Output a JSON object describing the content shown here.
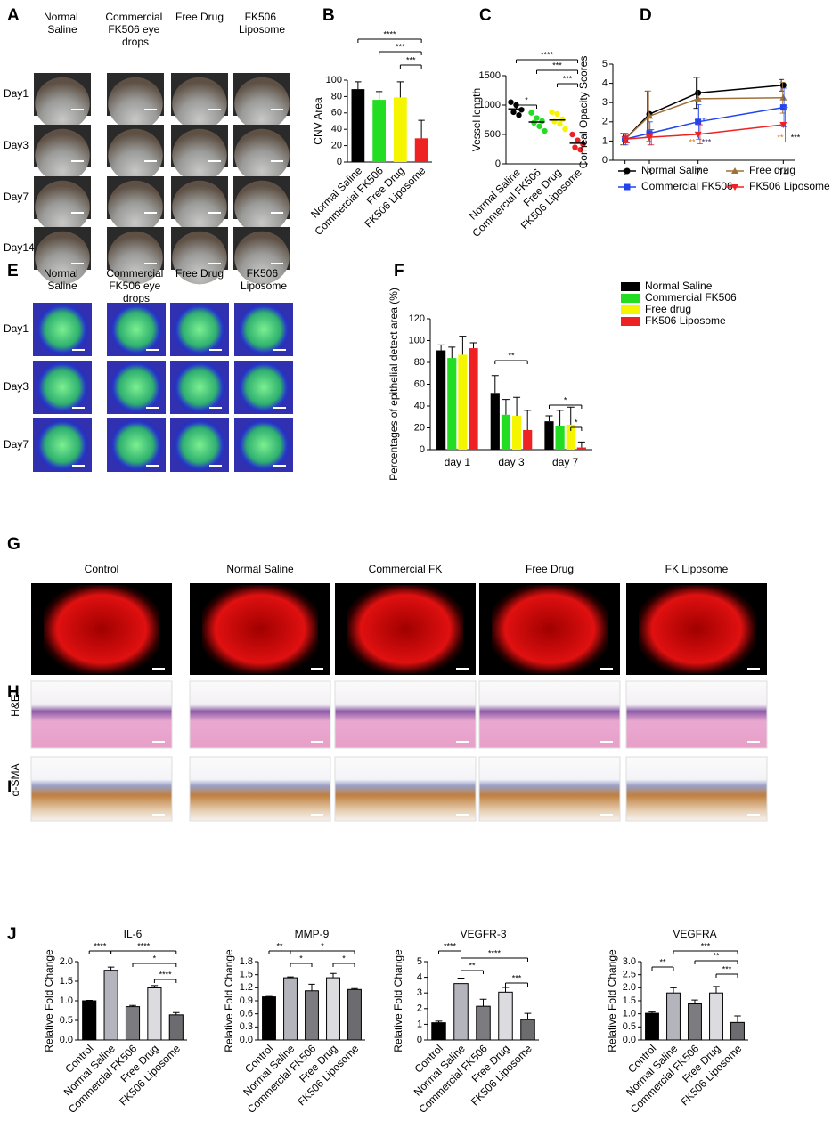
{
  "photo_panels": [
    {
      "label": "A",
      "columns": [
        "Normal Saline",
        "Commercial FK506 eye drops",
        "Free Drug",
        "FK506 Liposome"
      ],
      "rows": [
        "Day1",
        "Day3",
        "Day7",
        "Day14"
      ]
    },
    {
      "label": "E",
      "columns": [
        "Normal Saline",
        "Commercial FK506 eye drops",
        "Free Drug",
        "FK506 Liposome"
      ],
      "rows": [
        "Day1",
        "Day3",
        "Day7"
      ]
    },
    {
      "label": "G",
      "columns": [
        "Control",
        "Normal Saline",
        "Commercial FK",
        "Free Drug",
        "FK Liposome"
      ]
    },
    {
      "label": "H",
      "rows": [
        "H&E"
      ]
    },
    {
      "label": "I",
      "rows": [
        "α-SMA"
      ]
    }
  ],
  "chart_data": [
    {
      "type": "bar",
      "panel": "B",
      "ylabel": "CNV Area",
      "categories": [
        "Normal Saline",
        "Commercial FK506",
        "Free Drug",
        "FK506 Liposome"
      ],
      "values": [
        89,
        76,
        79,
        29
      ],
      "errors": [
        9,
        10,
        19,
        22
      ],
      "colors": [
        "#000000",
        "#22dd22",
        "#f5f500",
        "#ee2222"
      ],
      "ylim": [
        0,
        100
      ],
      "yticks": [
        0,
        20,
        40,
        60,
        80,
        100
      ],
      "annotations": [
        "****",
        "***",
        "***"
      ]
    },
    {
      "type": "dot",
      "panel": "C",
      "ylabel": "Vessel length",
      "categories": [
        "Normal Saline",
        "Commercial FK506",
        "Free Drug",
        "FK506 Liposome"
      ],
      "points": [
        [
          1050,
          1000,
          920,
          880,
          830
        ],
        [
          870,
          780,
          730,
          700,
          640,
          560
        ],
        [
          880,
          850,
          760,
          720,
          680,
          590
        ],
        [
          500,
          400,
          330,
          280,
          240
        ]
      ],
      "means": [
        936,
        713,
        747,
        350
      ],
      "colors": [
        "#000000",
        "#22dd22",
        "#f5f500",
        "#ee2222"
      ],
      "ylim": [
        0,
        1500
      ],
      "yticks": [
        0,
        500,
        1000,
        1500
      ],
      "annotations": [
        "*",
        "****",
        "***",
        "***"
      ]
    },
    {
      "type": "line",
      "panel": "D",
      "ylabel": "Corneal Opacity Scores",
      "x": [
        1,
        3,
        7,
        14
      ],
      "xlim": [
        0,
        15
      ],
      "xticks": [
        1,
        3,
        7,
        14
      ],
      "ylim": [
        0,
        5
      ],
      "yticks": [
        0,
        1,
        2,
        3,
        4,
        5
      ],
      "series": [
        {
          "name": "Normal Saline",
          "color": "#000000",
          "values": [
            1.1,
            2.4,
            3.5,
            3.9
          ],
          "errors": [
            0.3,
            1.2,
            0.8,
            0.3
          ]
        },
        {
          "name": "Free drug",
          "color": "#a0703a",
          "values": [
            1.1,
            2.3,
            3.2,
            3.25
          ],
          "errors": [
            0.3,
            1.3,
            1.1,
            0.8
          ]
        },
        {
          "name": "Commercial FK506",
          "color": "#2244ee",
          "values": [
            1.1,
            1.4,
            2.0,
            2.75
          ],
          "errors": [
            0.3,
            0.6,
            0.9,
            1.0
          ]
        },
        {
          "name": "FK506 Liposome",
          "color": "#ee2222",
          "values": [
            1.1,
            1.2,
            1.35,
            1.85
          ],
          "errors": [
            0.2,
            0.4,
            0.5,
            0.9
          ]
        }
      ],
      "annotations": [
        "*",
        "**",
        "***",
        "**",
        "***"
      ]
    },
    {
      "type": "grouped_bar",
      "panel": "F",
      "ylabel": "Percentages of epithelial detect area (%)",
      "categories": [
        "day 1",
        "day 3",
        "day 7"
      ],
      "series": [
        {
          "name": "Normal Saline",
          "color": "#000000",
          "values": [
            91,
            52,
            26
          ],
          "errors": [
            5,
            16,
            5
          ]
        },
        {
          "name": "Commercial FK506",
          "color": "#22dd22",
          "values": [
            84,
            32,
            22
          ],
          "errors": [
            10,
            14,
            14
          ]
        },
        {
          "name": "Free drug",
          "color": "#f5f500",
          "values": [
            87,
            31,
            23
          ],
          "errors": [
            17,
            17,
            16
          ]
        },
        {
          "name": "FK506 Liposome",
          "color": "#ee2222",
          "values": [
            93,
            18,
            2
          ],
          "errors": [
            5,
            18,
            5
          ]
        }
      ],
      "ylim": [
        0,
        120
      ],
      "yticks": [
        0,
        20,
        40,
        60,
        80,
        100,
        120
      ],
      "annotations": [
        "**",
        "*",
        "*"
      ]
    },
    {
      "type": "bar",
      "panel": "J",
      "title": "IL-6",
      "ylabel": "Relative Fold Change",
      "categories": [
        "Control",
        "Normal Saline",
        "Commercial FK506",
        "Free Drug",
        "FK506 Liposome"
      ],
      "values": [
        1.0,
        1.78,
        0.85,
        1.33,
        0.64
      ],
      "errors": [
        0.01,
        0.08,
        0.03,
        0.06,
        0.06
      ],
      "colors": [
        "#000000",
        "#b4b4bc",
        "#7c7c80",
        "#dcdce0",
        "#6c6c70"
      ],
      "ylim": [
        0,
        2
      ],
      "yticks": [
        {
          "value": 0,
          "label": "0.0"
        },
        0.5,
        {
          "value": 1,
          "label": "1.0"
        },
        1.5,
        {
          "value": 2,
          "label": "2.0"
        }
      ],
      "annotations": [
        "****",
        "****",
        "*",
        "****"
      ]
    },
    {
      "type": "bar",
      "title": "MMP-9",
      "ylabel": "Relative Fold Change",
      "categories": [
        "Control",
        "Normal Saline",
        "Commercial FK506",
        "Free Drug",
        "FK506 Liposome"
      ],
      "values": [
        0.99,
        1.43,
        1.13,
        1.43,
        1.16
      ],
      "errors": [
        0.01,
        0.02,
        0.15,
        0.1,
        0.02
      ],
      "colors": [
        "#000000",
        "#b4b4bc",
        "#7c7c80",
        "#dcdce0",
        "#6c6c70"
      ],
      "ylim": [
        0,
        1.8
      ],
      "yticks": [
        {
          "value": 0,
          "label": "0.0"
        },
        0.3,
        0.6,
        0.9,
        1.2,
        1.5,
        1.8
      ],
      "annotations": [
        "**",
        "*",
        "*",
        "*"
      ]
    },
    {
      "type": "bar",
      "title": "VEGFR-3",
      "ylabel": "Relative Fold Change",
      "categories": [
        "Control",
        "Normal Saline",
        "Commercial FK506",
        "Free Drug",
        "FK506 Liposome"
      ],
      "values": [
        1.1,
        3.6,
        2.15,
        3.05,
        1.3
      ],
      "errors": [
        0.1,
        0.35,
        0.45,
        0.3,
        0.4
      ],
      "colors": [
        "#000000",
        "#b4b4bc",
        "#7c7c80",
        "#dcdce0",
        "#6c6c70"
      ],
      "ylim": [
        0,
        5
      ],
      "yticks": [
        0,
        1,
        2,
        3,
        4,
        5
      ],
      "annotations": [
        "****",
        "****",
        "**",
        "***"
      ]
    },
    {
      "type": "bar",
      "title": "VEGFRA",
      "ylabel": "Relative Fold Change",
      "categories": [
        "Control",
        "Normal Saline",
        "Commercial FK506",
        "Free Drug",
        "FK506 Liposome"
      ],
      "values": [
        1.02,
        1.8,
        1.38,
        1.8,
        0.67
      ],
      "errors": [
        0.05,
        0.2,
        0.15,
        0.25,
        0.25
      ],
      "colors": [
        "#000000",
        "#b4b4bc",
        "#7c7c80",
        "#dcdce0",
        "#6c6c70"
      ],
      "ylim": [
        0,
        3
      ],
      "yticks": [
        {
          "value": 0,
          "label": "0.0"
        },
        0.5,
        {
          "value": 1,
          "label": "1.0"
        },
        1.5,
        {
          "value": 2,
          "label": "2.0"
        },
        2.5,
        {
          "value": 3,
          "label": "3.0"
        }
      ],
      "annotations": [
        "**",
        "***",
        "**",
        "***"
      ]
    }
  ]
}
